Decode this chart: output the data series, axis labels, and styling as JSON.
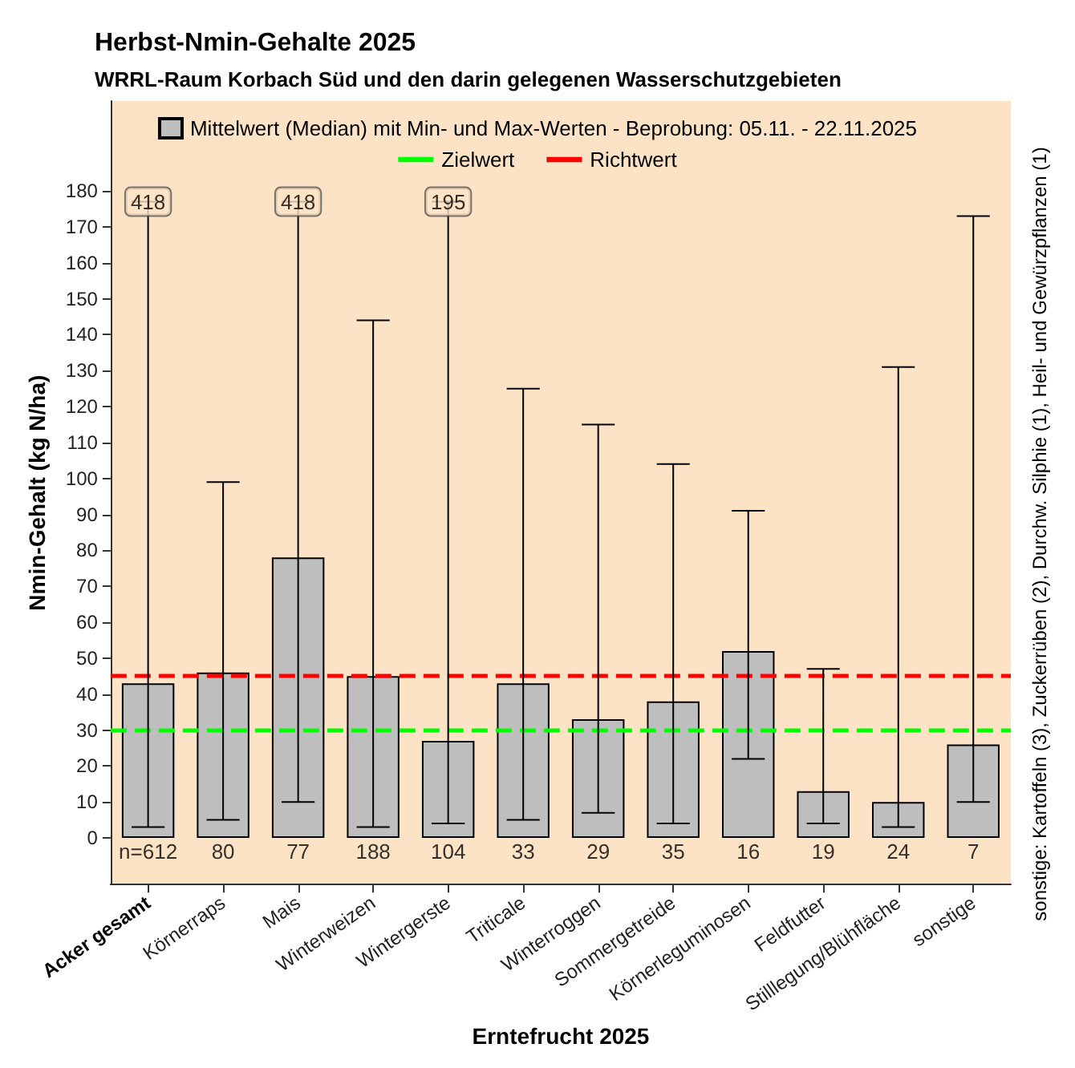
{
  "chart_data": {
    "type": "bar",
    "title": "Herbst-Nmin-Gehalte 2025",
    "subtitle": "WRRL-Raum Korbach Süd und den darin gelegenen Wasserschutzgebieten",
    "xlabel": "Erntefrucht 2025",
    "ylabel": "Nmin-Gehalt (kg N/ha)",
    "categories": [
      "Acker gesamt",
      "Körnerraps",
      "Mais",
      "Winterweizen",
      "Wintergerste",
      "Triticale",
      "Winterroggen",
      "Sommergetreide",
      "Körnerleguminosen",
      "Feldfutter",
      "Stilllegung/Blühfläche",
      "sonstige"
    ],
    "series": [
      {
        "name": "Mittelwert (Median) mit Min- und Max-Werten - Beprobung: 05.11. - 22.11.2025",
        "color": "#bebebe",
        "values": [
          43,
          46,
          78,
          45,
          27,
          43,
          33,
          38,
          52,
          13,
          10,
          26
        ],
        "errors": [
          [
            3,
            177
          ],
          [
            5,
            99
          ],
          [
            10,
            177
          ],
          [
            3,
            144
          ],
          [
            4,
            177
          ],
          [
            5,
            125
          ],
          [
            7,
            115
          ],
          [
            4,
            104
          ],
          [
            22,
            91
          ],
          [
            4,
            47
          ],
          [
            3,
            131
          ],
          [
            10,
            173
          ]
        ]
      }
    ],
    "ylim": [
      -13,
      205
    ],
    "yticks": [
      0,
      10,
      20,
      30,
      40,
      50,
      60,
      70,
      80,
      90,
      100,
      110,
      120,
      130,
      140,
      150,
      160,
      170,
      180
    ],
    "legend": "top",
    "ref_lines": [
      {
        "axis": "y",
        "value": 30,
        "label": "Zielwert",
        "color": "#00ff00",
        "line_style": "dashed"
      },
      {
        "axis": "y",
        "value": 45,
        "label": "Richtwert",
        "color": "#ff0000",
        "line_style": "dashed"
      }
    ],
    "annotations": [
      {
        "text": "418",
        "x": "Acker gesamt",
        "y": 177
      },
      {
        "text": "418",
        "x": "Mais",
        "y": 177
      },
      {
        "text": "195",
        "x": "Wintergerste",
        "y": 177
      },
      "n=612",
      "80",
      "77",
      "188",
      "104",
      "33",
      "29",
      "35",
      "16",
      "19",
      "24",
      "7",
      "sonstige: Kartoffeln (3), Zuckerrüben (2), Durchw. Silphie (1), Heil- und Gewürzpflanzen (1)"
    ]
  }
}
